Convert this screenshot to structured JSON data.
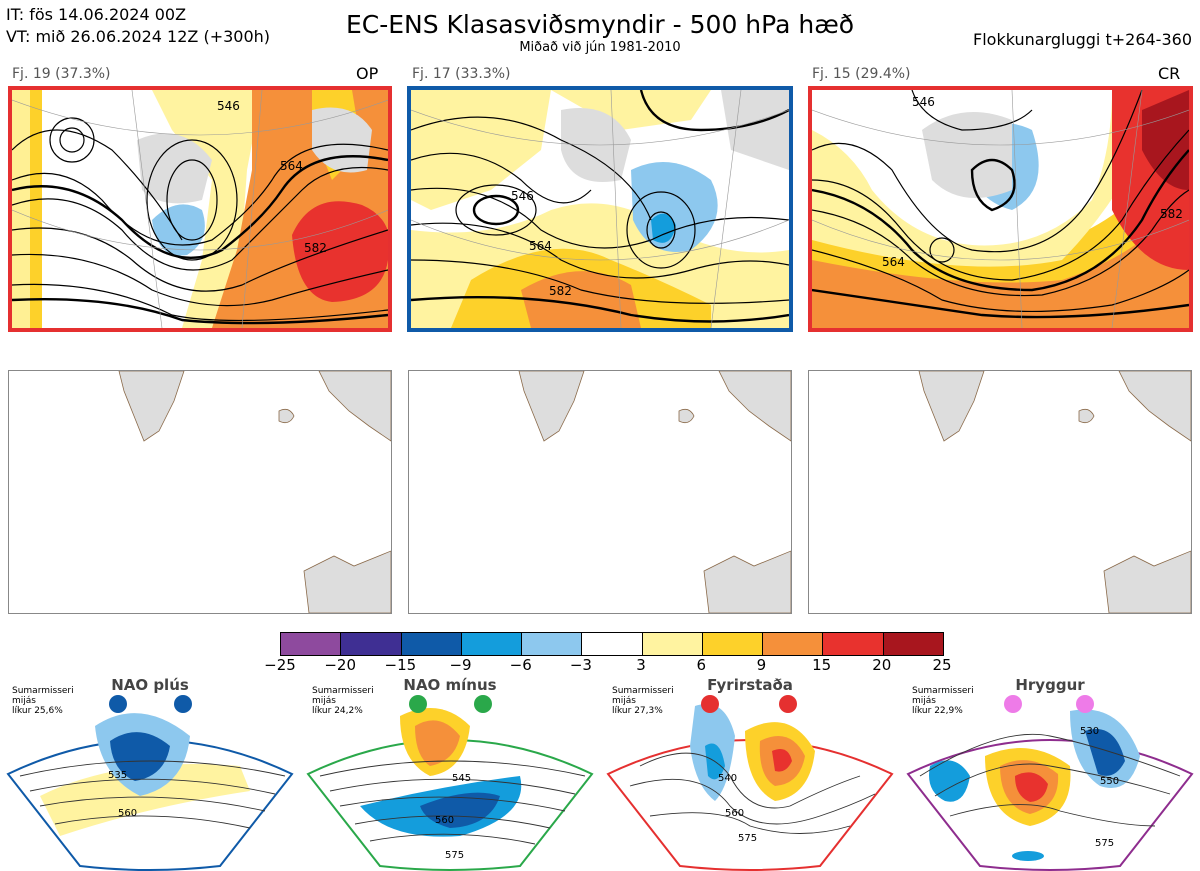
{
  "header": {
    "it_line": "IT: fös 14.06.2024 00Z",
    "vt_line": "VT: mið 26.06.2024 12Z  (+300h)",
    "title": "EC-ENS Klasasviðsmyndir - 500 hPa hæð",
    "subtitle": "Miðað við jún 1981-2010",
    "window": "Flokkunargluggi t+264-360"
  },
  "clusters": [
    {
      "label": "Fj. 19 (37.3%)",
      "code": "OP",
      "border_color": "#e53030",
      "contours": [
        "546",
        "564",
        "582"
      ]
    },
    {
      "label": "Fj. 17 (33.3%)",
      "code": "",
      "border_color": "#0f5aa8",
      "contours": [
        "546",
        "564",
        "582"
      ]
    },
    {
      "label": "Fj. 15 (29.4%)",
      "code": "CR",
      "border_color": "#e53030",
      "contours": [
        "546",
        "564",
        "582"
      ]
    }
  ],
  "colorbar": {
    "colors": [
      "#8e4a9e",
      "#3f2f93",
      "#0f5aa8",
      "#149ddc",
      "#8dc8ee",
      "#ffffff",
      "#fff3a0",
      "#fdd12a",
      "#f5903a",
      "#e8322e",
      "#a8161e"
    ],
    "ticks": [
      "−25",
      "−20",
      "−15",
      "−9",
      "−6",
      "−3",
      "3",
      "6",
      "9",
      "15",
      "20",
      "25"
    ]
  },
  "regimes": [
    {
      "name": "NAO plús",
      "note": [
        "Sumarmisseri",
        "mijás",
        "líkur 25,6%"
      ],
      "frame_color": "#0f5aa8",
      "dot_color": "#0f5aa8",
      "contours": [
        "535",
        "560"
      ]
    },
    {
      "name": "NAO mínus",
      "note": [
        "Sumarmisseri",
        "mijás",
        "líkur 24,2%"
      ],
      "frame_color": "#2aa84a",
      "dot_color": "#2aa84a",
      "contours": [
        "545",
        "560",
        "575"
      ]
    },
    {
      "name": "Fyrirstaða",
      "note": [
        "Sumarmisseri",
        "mijás",
        "líkur 27,3%"
      ],
      "frame_color": "#e53030",
      "dot_color": "#e53030",
      "contours": [
        "540",
        "560",
        "575"
      ]
    },
    {
      "name": "Hryggur",
      "note": [
        "Sumarmisseri",
        "mijás",
        "líkur 22,9%"
      ],
      "frame_color": "#8e2d8e",
      "dot_color": "#ee7be8",
      "contours": [
        "530",
        "550",
        "575"
      ]
    }
  ]
}
